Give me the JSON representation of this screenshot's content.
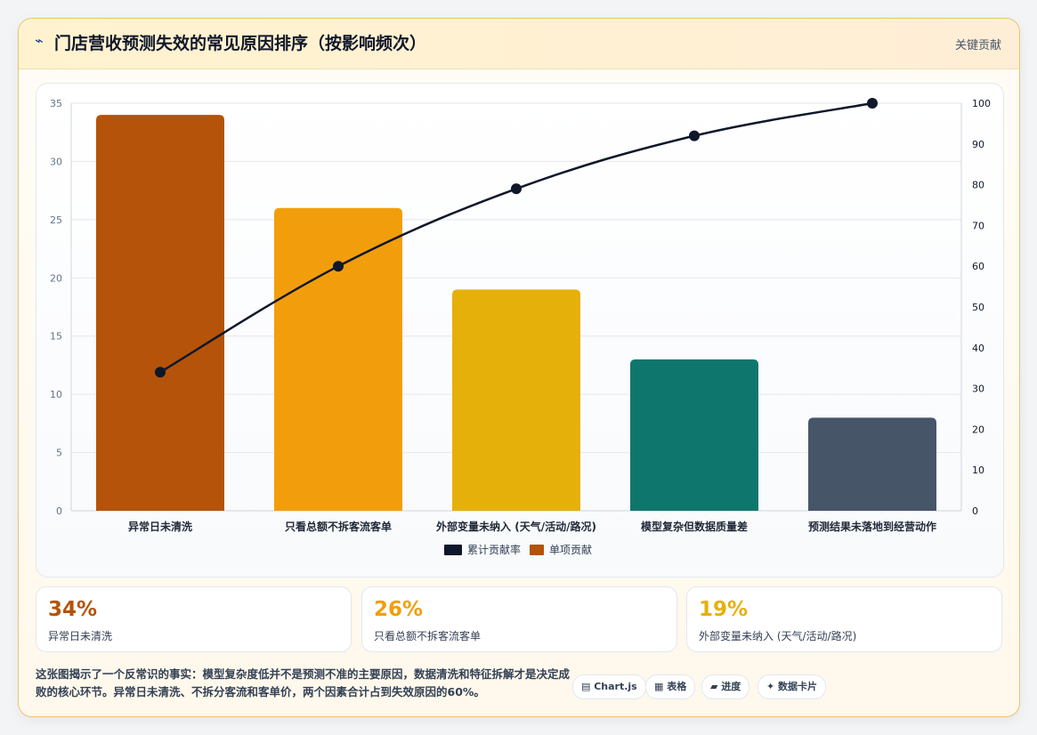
{
  "header": {
    "icon": "lightning-icon",
    "title": "门店营收预测失效的常见原因排序（按影响频次）",
    "tag": "关键贡献"
  },
  "chart_data": {
    "type": "bar",
    "categories": [
      "异常日未清洗",
      "只看总额不拆客流客单",
      "外部变量未纳入 (天气/活动/路况)",
      "模型复杂但数据质量差",
      "预测结果未落地到经营动作"
    ],
    "series": [
      {
        "name": "单项贡献",
        "type": "bar",
        "axis": "left",
        "values": [
          34,
          26,
          19,
          13,
          8
        ],
        "colors": [
          "#b45309",
          "#f29e0c",
          "#e6b00b",
          "#0f766e",
          "#475569"
        ]
      },
      {
        "name": "累计贡献率",
        "type": "line",
        "axis": "right",
        "values": [
          34,
          60,
          79,
          92,
          100
        ],
        "color": "#0f172a"
      }
    ],
    "y_left": {
      "min": 0,
      "max": 35,
      "ticks": [
        0,
        5,
        10,
        15,
        20,
        25,
        30,
        35
      ]
    },
    "y_right": {
      "min": 0,
      "max": 100,
      "ticks": [
        0,
        10,
        20,
        30,
        40,
        50,
        60,
        70,
        80,
        90,
        100
      ]
    },
    "grid": true,
    "legend": "bottom-center",
    "legend_items": [
      {
        "label": "累计贡献率",
        "color": "#0f172a"
      },
      {
        "label": "单项贡献",
        "color": "#b45309"
      }
    ]
  },
  "kpis": [
    {
      "value": "34%",
      "label": "异常日未清洗",
      "color": "#b45309"
    },
    {
      "value": "26%",
      "label": "只看总额不拆客流客单",
      "color": "#f29e0c"
    },
    {
      "value": "19%",
      "label": "外部变量未纳入 (天气/活动/路况)",
      "color": "#e6b00b"
    }
  ],
  "footer": {
    "note": "这张图揭示了一个反常识的事实：模型复杂度低并不是预测不准的主要原因，数据清洗和特征拆解才是决定成败的核心环节。异常日未清洗、不拆分客流和客单价，两个因素合计占到失效原因的60%。",
    "buttons": [
      {
        "icon": "chart-icon",
        "label": "▤ Chart.js"
      },
      {
        "icon": "table-icon",
        "label": "▦ 表格"
      },
      {
        "icon": "progress-icon",
        "label": "▰ 进度"
      },
      {
        "icon": "sparkle-icon",
        "label": "✦ 数据卡片"
      }
    ]
  }
}
